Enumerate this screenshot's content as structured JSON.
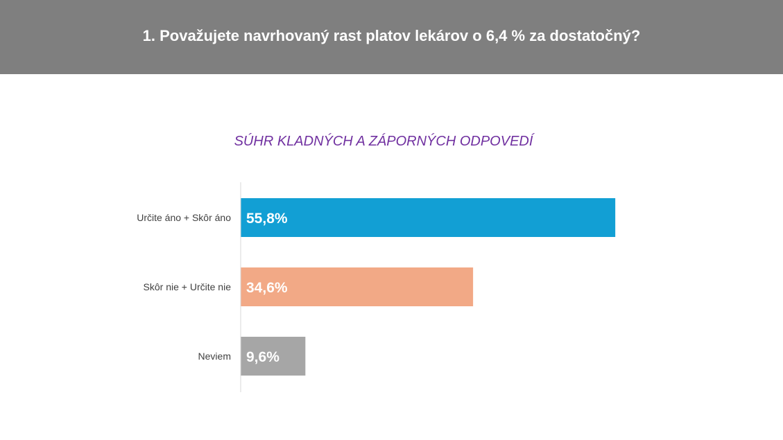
{
  "header": {
    "title": "1. Považujete navrhovaný rast platov lekárov o 6,4 % za dostatočný?"
  },
  "chart_data": {
    "type": "bar",
    "orientation": "horizontal",
    "title": "SÚHR KLADNÝCH A ZÁPORNÝCH ODPOVEDÍ",
    "categories": [
      "Určite áno + Skôr áno",
      "Skôr nie + Určite nie",
      "Neviem"
    ],
    "values": [
      55.8,
      34.6,
      9.6
    ],
    "value_labels": [
      "55,8%",
      "34,6%",
      "9,6%"
    ],
    "colors": [
      "#129fd4",
      "#f2a986",
      "#a6a6a6"
    ],
    "xlim": [
      0,
      70
    ],
    "grid": false,
    "legend": "none"
  }
}
